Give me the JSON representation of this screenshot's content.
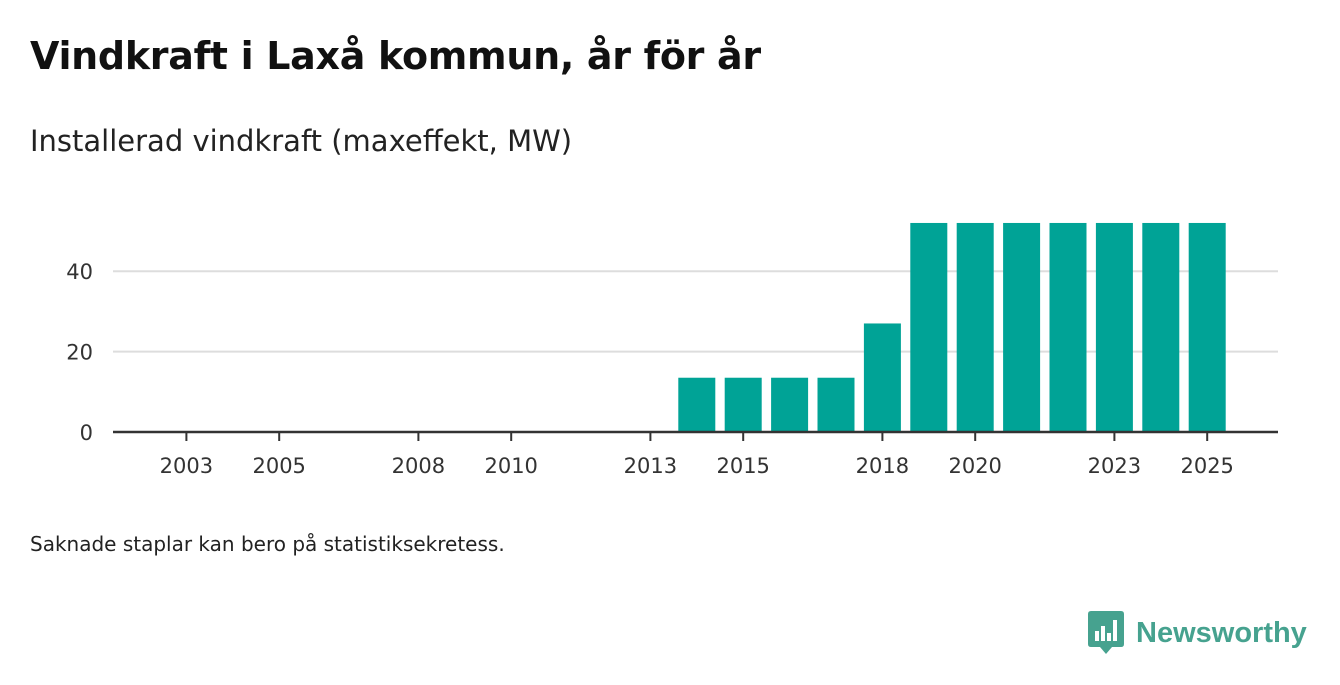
{
  "header": {
    "title": "Vindkraft i Laxå kommun, år för år",
    "subtitle": "Installerad vindkraft (maxeffekt, MW)"
  },
  "footer": {
    "note": "Saknade staplar kan bero på statistiksekretess.",
    "brand": "Newsworthy"
  },
  "colors": {
    "bar": "#00a396",
    "grid": "#dddddd",
    "axis": "#333333",
    "brand": "#46a28f"
  },
  "chart_data": {
    "type": "bar",
    "title": "Vindkraft i Laxå kommun, år för år",
    "ylabel": "Installerad vindkraft (maxeffekt, MW)",
    "xlabel": "",
    "ylim": [
      0,
      55
    ],
    "y_ticks": [
      0,
      20,
      40
    ],
    "grid": true,
    "categories": [
      2002,
      2003,
      2004,
      2005,
      2006,
      2007,
      2008,
      2009,
      2010,
      2011,
      2012,
      2013,
      2014,
      2015,
      2016,
      2017,
      2018,
      2019,
      2020,
      2021,
      2022,
      2023,
      2024,
      2025
    ],
    "values": [
      null,
      null,
      null,
      null,
      null,
      null,
      null,
      null,
      null,
      null,
      null,
      null,
      13.5,
      13.5,
      13.5,
      13.5,
      27,
      52,
      52,
      52,
      52,
      52,
      52,
      52
    ],
    "x_tick_labels": [
      "2003",
      "2005",
      "2008",
      "2010",
      "2013",
      "2015",
      "2018",
      "2020",
      "2023",
      "2025"
    ]
  }
}
